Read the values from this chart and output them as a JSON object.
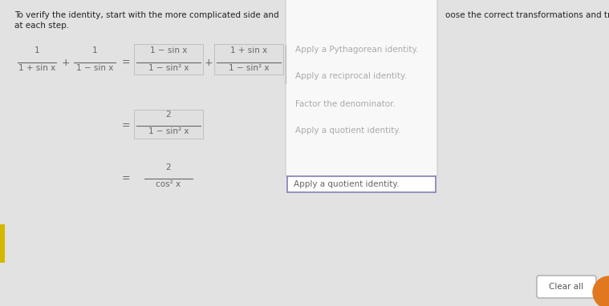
{
  "bg_color": "#dcdcdc",
  "panel_bg": "#e2e2e2",
  "header_text_line1": "To verify the identity, start with the more complicated side and",
  "header_text_line2": "at each step.",
  "header_text_right": "oose the correct transformations and transfo",
  "box_fill": "#e0e0e0",
  "box_border": "#c0c0c0",
  "selected_box_border": "#8080bb",
  "dropdown_fill": "#f8f8f8",
  "dropdown_border": "#cccccc",
  "dropdown_items": [
    "Apply a Pythagorean identity.",
    "Apply a reciprocal identity.",
    "Factor the denominator.",
    "Apply a quotient identity."
  ],
  "selected_item": "Apply a quotient identity.",
  "clear_btn_text": "Clear all",
  "math_color": "#666666",
  "text_color": "#222222",
  "gray_text": "#aaaaaa",
  "yellow_color": "#d4b800",
  "orange_color": "#e07820"
}
